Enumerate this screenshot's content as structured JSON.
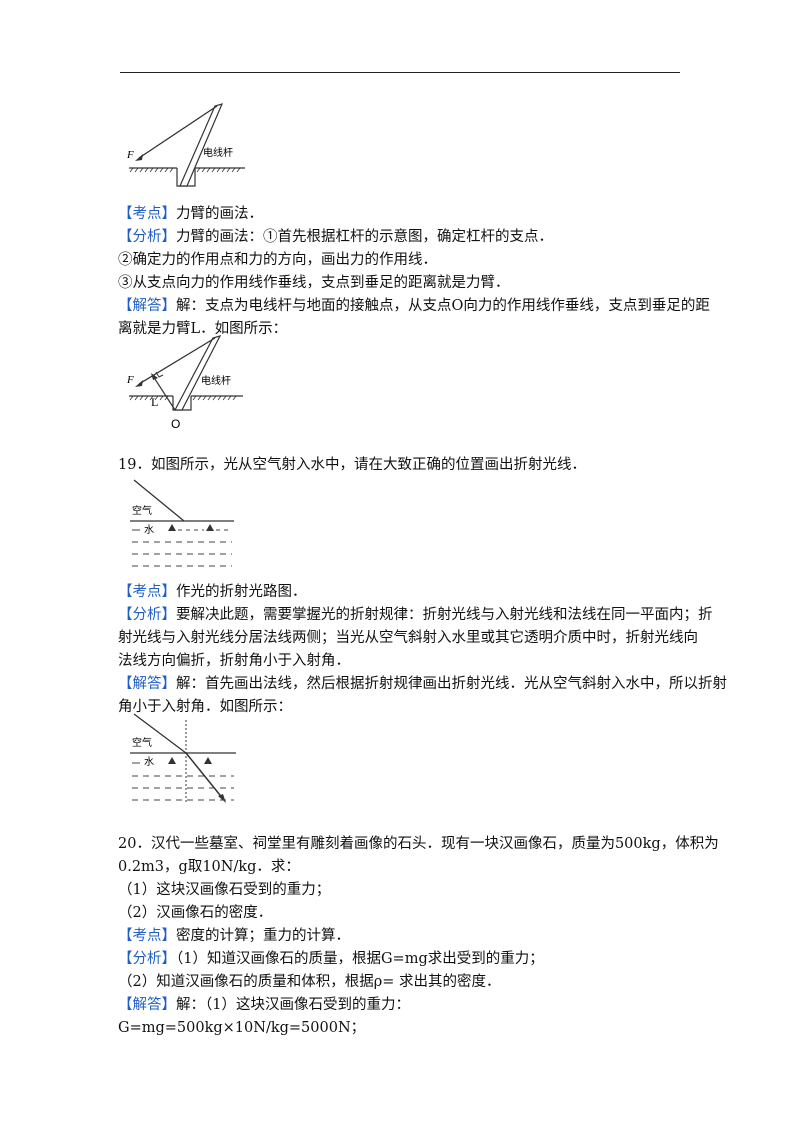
{
  "tags": {
    "kaodian": "【考点】",
    "fenxi": "【分析】",
    "jieda": "【解答】"
  },
  "fig1": {
    "pole_label": "电线杆",
    "force_label": "F"
  },
  "fig2": {
    "pole_label": "电线杆",
    "force_label": "F",
    "arm_label": "L",
    "pivot_label": "O"
  },
  "fig3": {
    "air_label": "空气",
    "water_label": "水"
  },
  "fig4": {
    "air_label": "空气",
    "water_label": "水"
  },
  "q18": {
    "kaodian": "力臂的画法．",
    "fenxi_1": "力臂的画法：①首先根据杠杆的示意图，确定杠杆的支点．",
    "fenxi_2": "②确定力的作用点和力的方向，画出力的作用线．",
    "fenxi_3": "③从支点向力的作用线作垂线，支点到垂足的距离就是力臂．",
    "jieda_1": "解：支点为电线杆与地面的接触点，从支点O向力的作用线作垂线，支点到垂足的距",
    "jieda_2": "离就是力臂L．如图所示："
  },
  "q19": {
    "question": "19．如图所示，光从空气射入水中，请在大致正确的位置画出折射光线．",
    "kaodian": "作光的折射光路图．",
    "fenxi_1": "要解决此题，需要掌握光的折射规律：折射光线与入射光线和法线在同一平面内；折",
    "fenxi_2": "射光线与入射光线分居法线两侧；当光从空气斜射入水里或其它透明介质中时，折射光线向",
    "fenxi_3": "法线方向偏折，折射角小于入射角．",
    "jieda_1": "解：首先画出法线，然后根据折射规律画出折射光线．光从空气斜射入水中，所以折射",
    "jieda_2": "角小于入射角．如图所示："
  },
  "q20": {
    "question_1": "20．汉代一些墓室、祠堂里有雕刻着画像的石头．现有一块汉画像石，质量为500kg，体积为",
    "question_2": "0.2m3，g取10N/kg．求：",
    "sub_1": "（1）这块汉画像石受到的重力；",
    "sub_2": "（2）汉画像石的密度．",
    "kaodian": "密度的计算；重力的计算．",
    "fenxi_1": "（1）知道汉画像石的质量，根据G=mg求出受到的重力；",
    "fenxi_2": "（2）知道汉画像石的质量和体积，根据ρ= 求出其的密度．",
    "jieda_1": "解：（1）这块汉画像石受到的重力：",
    "jieda_2": "G=mg=500kg×10N/kg=5000N；"
  }
}
